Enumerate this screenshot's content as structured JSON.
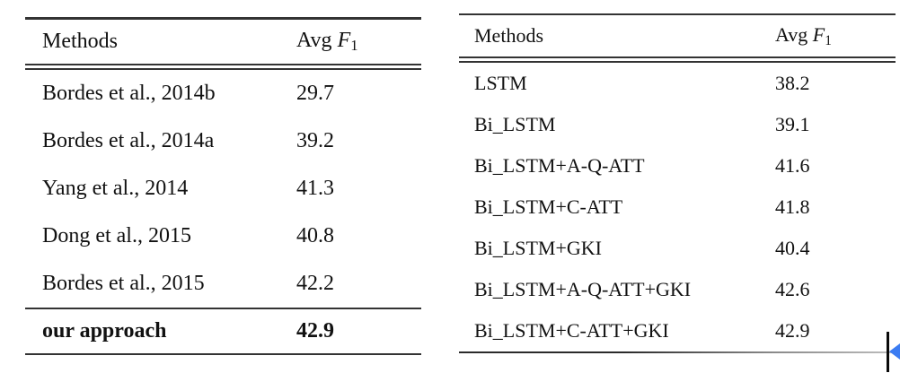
{
  "colors": {
    "rule": "#333333",
    "text": "#111111",
    "cursor_blue": "#3b7cf2"
  },
  "left_table": {
    "header": {
      "methods": "Methods",
      "avg": "Avg",
      "f_symbol": "F",
      "f_subscript": "1"
    },
    "rows": [
      {
        "method": "Bordes et al., 2014b",
        "value": "29.7"
      },
      {
        "method": "Bordes et al., 2014a",
        "value": "39.2"
      },
      {
        "method": "Yang et al., 2014",
        "value": "41.3"
      },
      {
        "method": "Dong et al., 2015",
        "value": "40.8"
      },
      {
        "method": "Bordes et al., 2015",
        "value": "42.2"
      }
    ],
    "highlight_row": {
      "method": "our approach",
      "value": "42.9"
    }
  },
  "right_table": {
    "header": {
      "methods": "Methods",
      "avg": "Avg",
      "f_symbol": "F",
      "f_subscript": "1"
    },
    "rows": [
      {
        "method": "LSTM",
        "value": "38.2"
      },
      {
        "method": "Bi_LSTM",
        "value": "39.1"
      },
      {
        "method": "Bi_LSTM+A-Q-ATT",
        "value": "41.6"
      },
      {
        "method": "Bi_LSTM+C-ATT",
        "value": "41.8"
      },
      {
        "method": "Bi_LSTM+GKI",
        "value": "40.4"
      },
      {
        "method": "Bi_LSTM+A-Q-ATT+GKI",
        "value": "42.6"
      },
      {
        "method": "Bi_LSTM+C-ATT+GKI",
        "value": "42.9"
      }
    ]
  }
}
